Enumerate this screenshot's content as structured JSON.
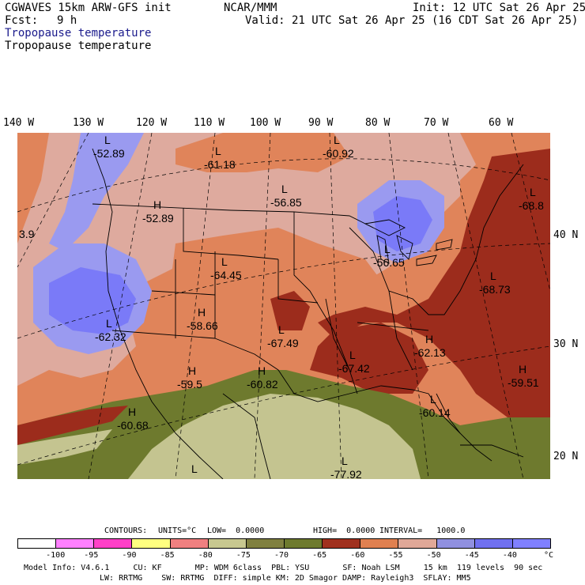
{
  "header": {
    "model": "CGWAVES 15km ARW-GFS init",
    "org": "NCAR/MMM",
    "init": "Init: 12 UTC Sat 26 Apr 25",
    "fcst_label": "Fcst:",
    "fcst_value": "9 h",
    "valid": "Valid: 21 UTC Sat 26 Apr 25 (16 CDT Sat 26 Apr 25)",
    "field_primary": "Tropopause temperature",
    "field_secondary": "Tropopause temperature",
    "field_primary_color": "#1a1a8c"
  },
  "lon_labels": [
    "140 W",
    "130 W",
    "120 W",
    "110 W",
    "100 W",
    "90 W",
    "80 W",
    "70 W",
    "60 W"
  ],
  "lat_labels": [
    "40 N",
    "30 N",
    "20 N"
  ],
  "map_labels": [
    {
      "hl": "L",
      "value": "-52.89"
    },
    {
      "hl": "L",
      "value": "-61.18"
    },
    {
      "hl": "L",
      "value": "-60.92"
    },
    {
      "hl": "L",
      "value": "-56.85"
    },
    {
      "hl": "H",
      "value": "-52.89"
    },
    {
      "hl": "",
      "value": "3.9"
    },
    {
      "hl": "L",
      "value": "-68.8"
    },
    {
      "hl": "L",
      "value": "-56.65"
    },
    {
      "hl": "L",
      "value": "-64.45"
    },
    {
      "hl": "L",
      "value": "-68.73"
    },
    {
      "hl": "H",
      "value": "-58.66"
    },
    {
      "hl": "L",
      "value": "-62.32"
    },
    {
      "hl": "L",
      "value": "-67.49"
    },
    {
      "hl": "L",
      "value": "-67.42"
    },
    {
      "hl": "H",
      "value": "-62.13"
    },
    {
      "hl": "H",
      "value": "-59.5"
    },
    {
      "hl": "H",
      "value": "-60.82"
    },
    {
      "hl": "H",
      "value": "-59.51"
    },
    {
      "hl": "H",
      "value": "-60.68"
    },
    {
      "hl": "L",
      "value": "-60.14"
    },
    {
      "hl": "L",
      "value": ""
    },
    {
      "hl": "L",
      "value": "-77.92"
    }
  ],
  "colorbar": {
    "contours_label": "CONTOURS:",
    "units": "UNITS=°C",
    "low": "LOW=  0.0000",
    "high": "HIGH=  0.0000",
    "interval": "INTERVAL=   1000.0",
    "colors": [
      "#ffffff",
      "#ff80ff",
      "#ff40c8",
      "#ffff80",
      "#f08080",
      "#c8c890",
      "#808040",
      "#6e7a2e",
      "#a0301e",
      "#e08050",
      "#e0a898",
      "#9090e0",
      "#7070f0",
      "#8080ff"
    ],
    "ticks": [
      "-100",
      "-95",
      "-90",
      "-85",
      "-80",
      "-75",
      "-70",
      "-65",
      "-60",
      "-55",
      "-50",
      "-45",
      "-40",
      "°C"
    ]
  },
  "footer": {
    "line1": "Model Info: V4.6.1     CU: KF       MP: WDM 6class  PBL: YSU       SF: Noah LSM     15 km  119 levels  90 sec",
    "line2": "LW: RRTMG    SW: RRTMG  DIFF: simple KM: 2D Smagor DAMP: Rayleigh3  SFLAY: MM5"
  },
  "palette": {
    "lt_pink": "#deaa9e",
    "orange": "#e0845a",
    "dk_red": "#9c2c1c",
    "olive": "#6e7a2e",
    "khaki": "#c4c490",
    "lt_blue": "#9a9af0",
    "blue": "#7a7af8"
  }
}
